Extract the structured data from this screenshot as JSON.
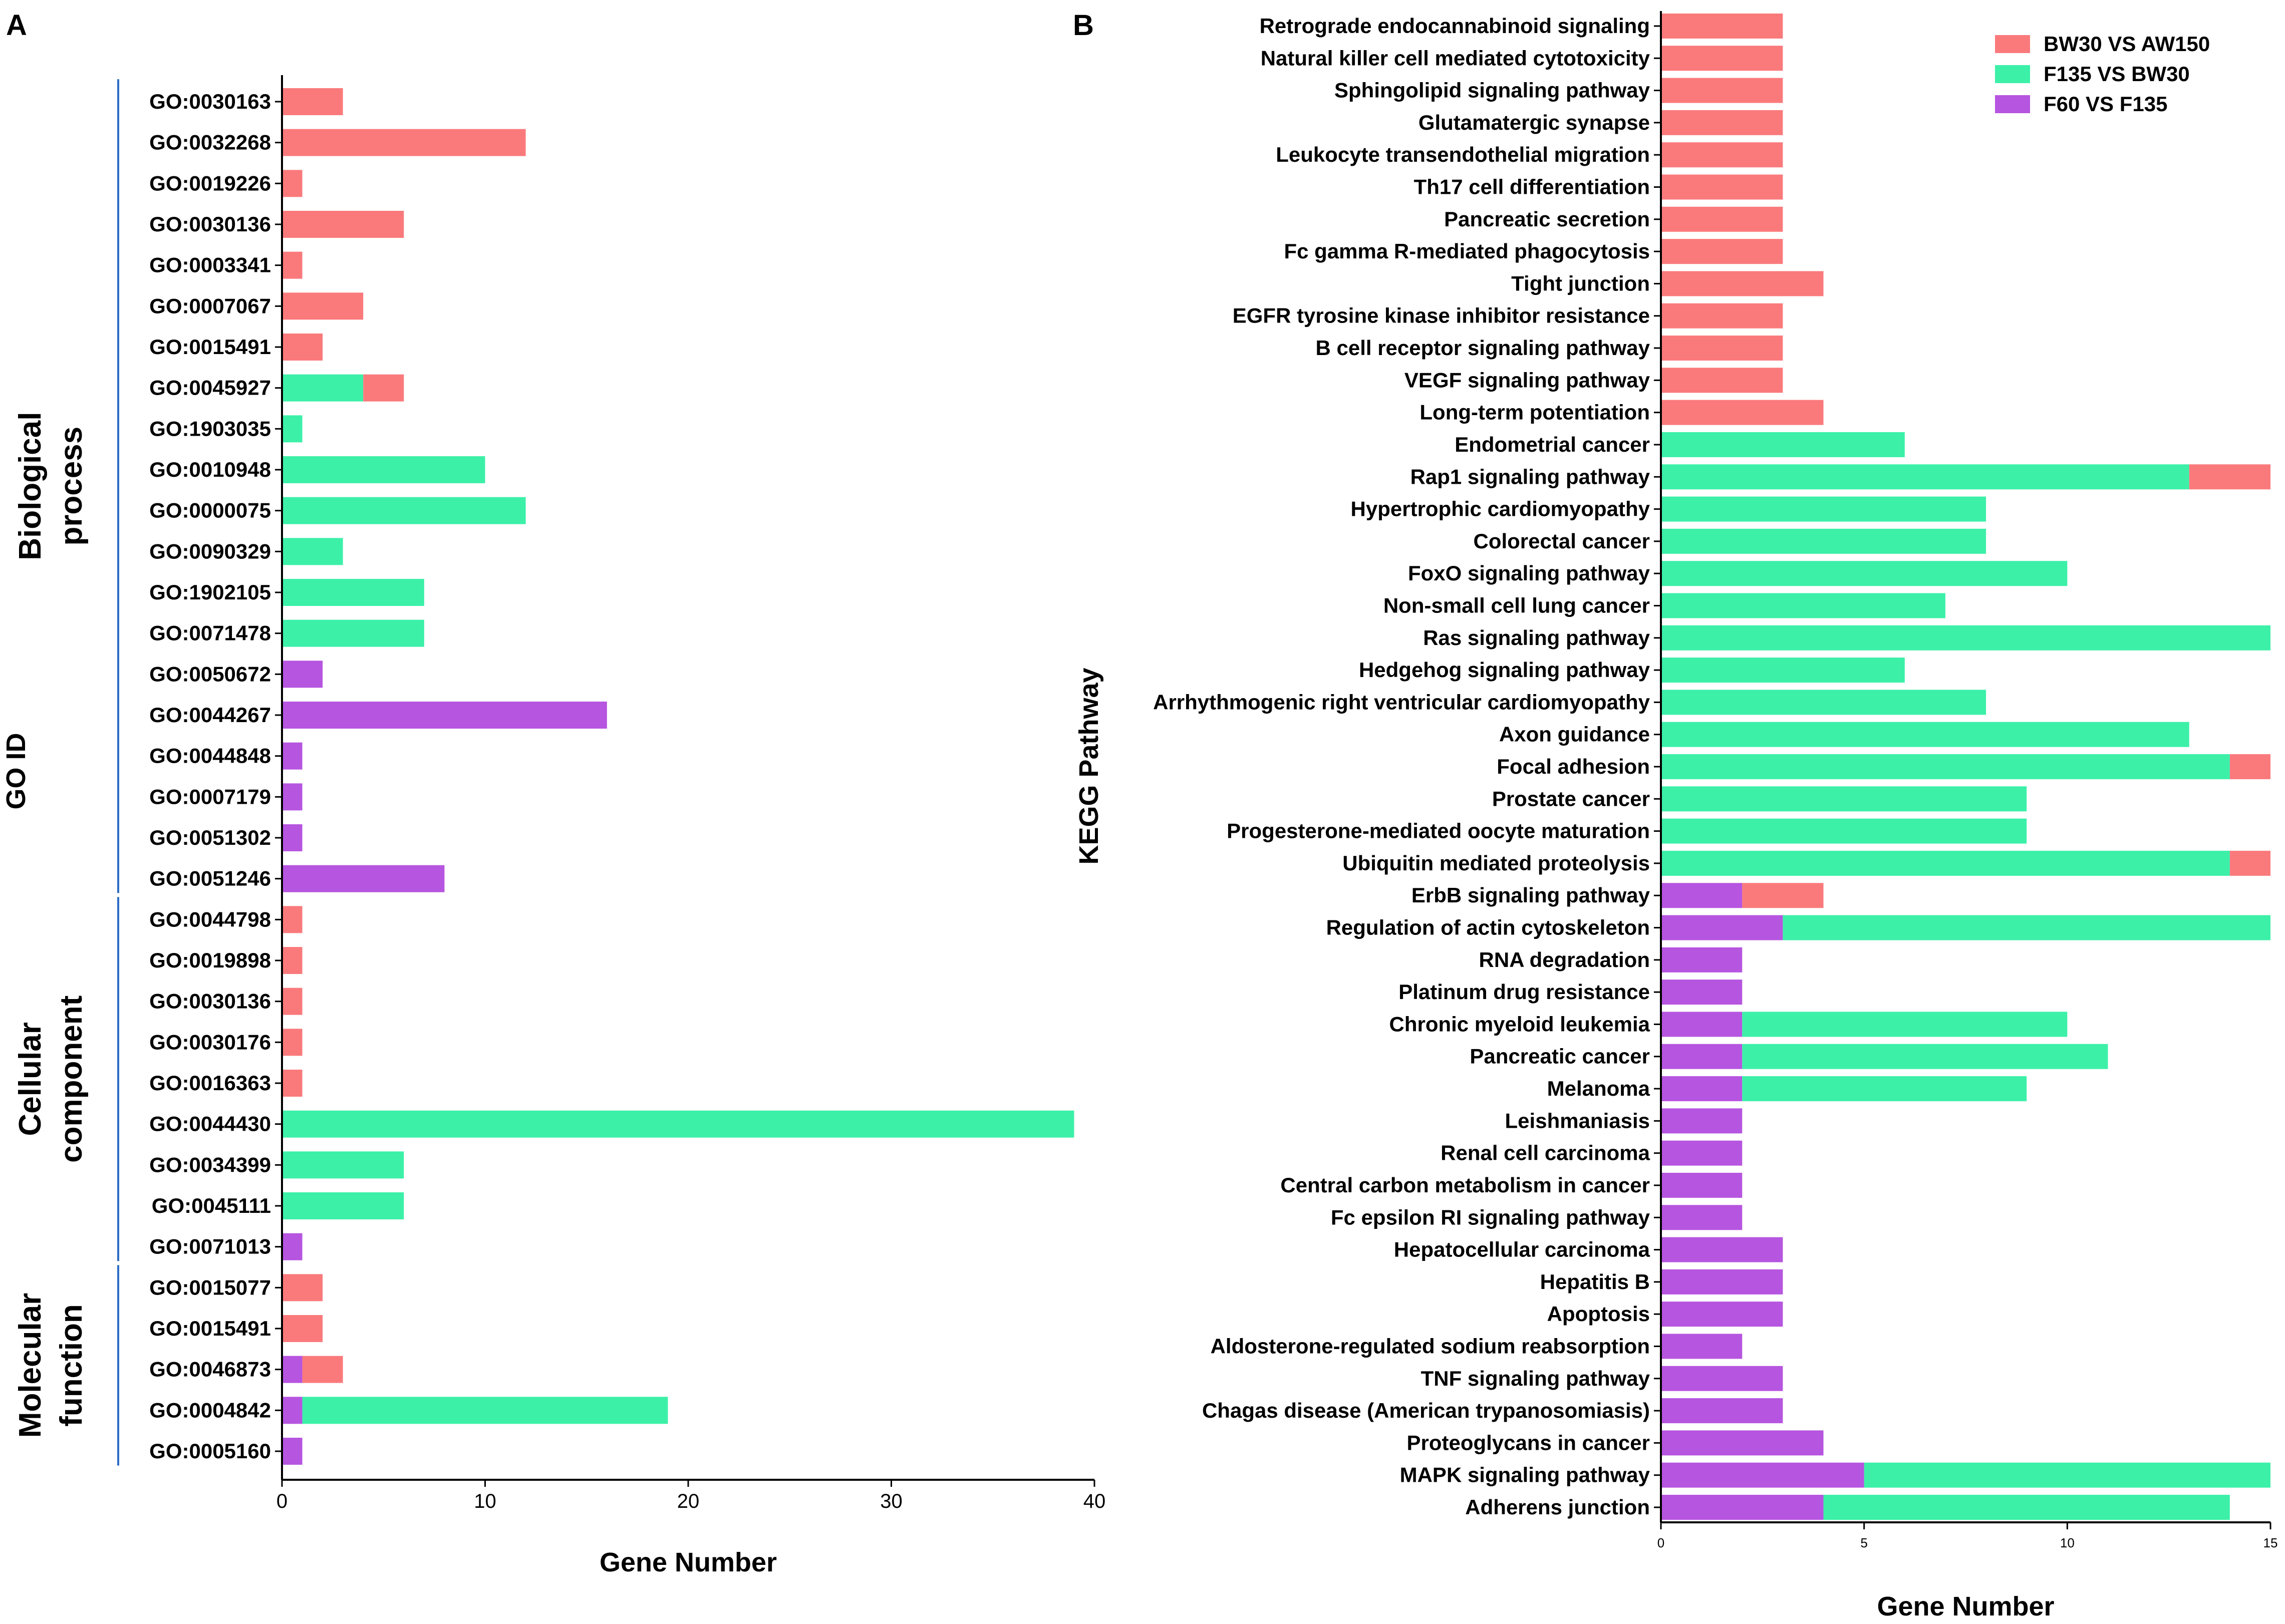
{
  "colors": {
    "BW30 VS AW150": "#fa7a7c",
    "F135 VS BW30": "#3cf0a8",
    "F60 VS F135": "#b655e0",
    "bracket": "#2b6cc4"
  },
  "chart_data": [
    {
      "panel": "A",
      "type": "bar",
      "orientation": "horizontal",
      "stacked": true,
      "xlabel": "Gene Number",
      "ylabel": "GO ID",
      "xlim": [
        0,
        40
      ],
      "xticks": [
        "0",
        "10",
        "20",
        "30",
        "40"
      ],
      "groups": [
        {
          "label": "Biological process",
          "lines": [
            "Biological",
            "process"
          ],
          "from": 0,
          "to": 19
        },
        {
          "label": "Cellular component",
          "lines": [
            "Cellular",
            "component"
          ],
          "from": 20,
          "to": 28
        },
        {
          "label": "Molecular function",
          "lines": [
            "Molecular",
            "function"
          ],
          "from": 29,
          "to": 33
        }
      ],
      "categories": [
        "GO:0030163",
        "GO:0032268",
        "GO:0019226",
        "GO:0030136",
        "GO:0003341",
        "GO:0007067",
        "GO:0015491",
        "GO:0045927",
        "GO:1903035",
        "GO:0010948",
        "GO:0000075",
        "GO:0090329",
        "GO:1902105",
        "GO:0071478",
        "GO:0050672",
        "GO:0044267",
        "GO:0044848",
        "GO:0007179",
        "GO:0051302",
        "GO:0051246",
        "GO:0044798",
        "GO:0019898",
        "GO:0030136",
        "GO:0030176",
        "GO:0016363",
        "GO:0044430",
        "GO:0034399",
        "GO:0045111",
        "GO:0071013",
        "GO:0015077",
        "GO:0015491",
        "GO:0046873",
        "GO:0004842",
        "GO:0005160"
      ],
      "series": [
        {
          "name": "F60 VS F135",
          "values": [
            0,
            0,
            0,
            0,
            0,
            0,
            0,
            0,
            0,
            0,
            0,
            0,
            0,
            0,
            2,
            16,
            1,
            1,
            1,
            8,
            0,
            0,
            0,
            0,
            0,
            0,
            0,
            0,
            1,
            0,
            0,
            1,
            1,
            1
          ]
        },
        {
          "name": "F135 VS BW30",
          "values": [
            0,
            0,
            0,
            0,
            0,
            0,
            0,
            4,
            1,
            10,
            12,
            3,
            7,
            7,
            0,
            0,
            0,
            0,
            0,
            0,
            0,
            0,
            0,
            0,
            0,
            39,
            6,
            6,
            0,
            0,
            0,
            0,
            18,
            0
          ]
        },
        {
          "name": "BW30 VS AW150",
          "values": [
            3,
            12,
            1,
            6,
            1,
            4,
            2,
            2,
            0,
            0,
            0,
            0,
            0,
            0,
            0,
            0,
            0,
            0,
            0,
            0,
            1,
            1,
            1,
            1,
            1,
            0,
            0,
            0,
            0,
            2,
            2,
            2,
            0,
            0
          ]
        }
      ]
    },
    {
      "panel": "B",
      "type": "bar",
      "orientation": "horizontal",
      "stacked": true,
      "xlabel": "Gene Number",
      "ylabel": "KEGG Pathway",
      "xlim": [
        0,
        15
      ],
      "xticks": [
        "0",
        "5",
        "10",
        "15"
      ],
      "legend": [
        "BW30 VS AW150",
        "F135 VS BW30",
        "F60 VS F135"
      ],
      "legend_position": "top-right",
      "categories": [
        "Retrograde endocannabinoid signaling",
        "Natural killer cell mediated cytotoxicity",
        "Sphingolipid signaling pathway",
        "Glutamatergic synapse",
        "Leukocyte transendothelial migration",
        "Th17 cell differentiation",
        "Pancreatic secretion",
        "Fc gamma R-mediated phagocytosis",
        "Tight junction",
        "EGFR tyrosine kinase inhibitor resistance",
        "B cell receptor signaling pathway",
        "VEGF signaling pathway",
        "Long-term potentiation",
        "Endometrial cancer",
        "Rap1 signaling pathway",
        "Hypertrophic cardiomyopathy",
        "Colorectal cancer",
        "FoxO signaling pathway",
        "Non-small cell lung cancer",
        "Ras signaling pathway",
        "Hedgehog signaling pathway",
        "Arrhythmogenic right ventricular cardiomyopathy",
        "Axon guidance",
        "Focal adhesion",
        "Prostate cancer",
        "Progesterone-mediated oocyte maturation",
        "Ubiquitin mediated proteolysis",
        "ErbB signaling pathway",
        "Regulation of actin cytoskeleton",
        "RNA degradation",
        "Platinum drug resistance",
        "Chronic myeloid leukemia",
        "Pancreatic cancer",
        "Melanoma",
        "Leishmaniasis",
        "Renal cell carcinoma",
        "Central carbon metabolism in cancer",
        "Fc epsilon RI signaling pathway",
        "Hepatocellular carcinoma",
        "Hepatitis B",
        "Apoptosis",
        "Aldosterone-regulated sodium reabsorption",
        "TNF signaling pathway",
        "Chagas disease (American trypanosomiasis)",
        "Proteoglycans in cancer",
        "MAPK signaling pathway",
        "Adherens junction"
      ],
      "series": [
        {
          "name": "F60 VS F135",
          "values": [
            0,
            0,
            0,
            0,
            0,
            0,
            0,
            0,
            0,
            0,
            0,
            0,
            0,
            0,
            0,
            0,
            0,
            0,
            0,
            0,
            0,
            0,
            0,
            0,
            0,
            0,
            0,
            2,
            3,
            2,
            2,
            2,
            2,
            2,
            2,
            2,
            2,
            2,
            3,
            3,
            3,
            2,
            3,
            3,
            4,
            5,
            4
          ]
        },
        {
          "name": "F135 VS BW30",
          "values": [
            0,
            0,
            0,
            0,
            0,
            0,
            0,
            0,
            0,
            0,
            0,
            0,
            0,
            6,
            13,
            8,
            8,
            10,
            7,
            15,
            6,
            8,
            13,
            14,
            9,
            9,
            14,
            0,
            12,
            0,
            0,
            8,
            9,
            7,
            0,
            0,
            0,
            0,
            0,
            0,
            0,
            0,
            0,
            0,
            0,
            10,
            10
          ]
        },
        {
          "name": "BW30 VS AW150",
          "values": [
            3,
            3,
            3,
            3,
            3,
            3,
            3,
            3,
            4,
            3,
            3,
            3,
            4,
            0,
            2,
            0,
            0,
            0,
            0,
            0,
            0,
            0,
            0,
            1,
            0,
            0,
            1,
            2,
            0,
            0,
            0,
            0,
            0,
            0,
            0,
            0,
            0,
            0,
            0,
            0,
            0,
            0,
            0,
            0,
            0,
            0,
            0
          ]
        }
      ]
    }
  ]
}
